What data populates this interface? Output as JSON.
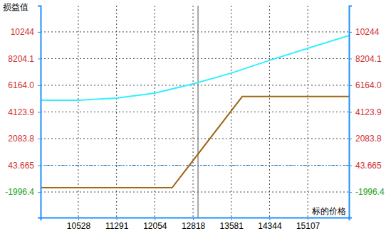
{
  "chart_data": {
    "type": "line",
    "y_label": "损益值",
    "x_label": "标的价格",
    "xlim": [
      9775,
      15930
    ],
    "xticks": [
      10528,
      11291,
      12054,
      12818,
      13581,
      14344,
      15107
    ],
    "ylim": [
      -3950,
      12250
    ],
    "yticks": [
      10244,
      8204.1,
      {
        "value": 6164.0,
        "label": "6164.0"
      },
      4123.9,
      2083.8,
      43.665,
      -1996.4
    ],
    "y2lim": [
      -3950,
      12250
    ],
    "y2ticks": [
      10244,
      8204.1,
      {
        "value": 6164.0,
        "label": "6164.0"
      },
      4123.9,
      2083.8,
      43.665,
      -1996.4
    ],
    "grid": true,
    "reference_x": 12917,
    "reference_y": 43.665,
    "series": [
      {
        "color": "#33efff",
        "line_style": "solid",
        "x": [
          9775,
          10528,
          11291,
          12054,
          12818,
          13581,
          14344,
          15107,
          15930
        ],
        "values": [
          5020,
          5020,
          5185,
          5565,
          6270,
          7090,
          8070,
          8990,
          9970
        ]
      },
      {
        "color": "#a0661a",
        "line_style": "solid",
        "x": [
          9775,
          12400,
          13800,
          15930
        ],
        "values": [
          -1670,
          -1670,
          5300,
          5300
        ]
      }
    ]
  }
}
